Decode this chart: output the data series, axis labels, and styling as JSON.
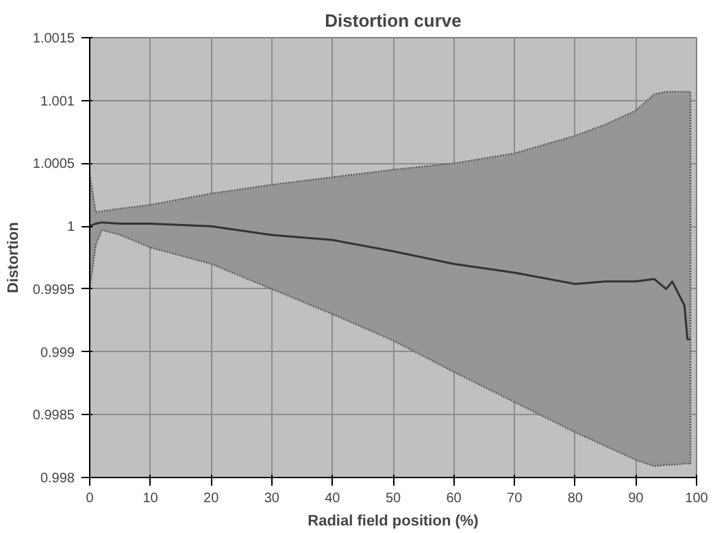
{
  "chart_data": {
    "type": "line",
    "title": "Distortion curve",
    "xlabel": "Radial field position (%)",
    "ylabel": "Distortion",
    "x": [
      0,
      1,
      2,
      5,
      10,
      20,
      30,
      40,
      50,
      60,
      70,
      80,
      85,
      90,
      93,
      95,
      96,
      98,
      98.5,
      99
    ],
    "series": [
      {
        "color": "#333333",
        "values": [
          1.0,
          1.00002,
          1.00003,
          1.00002,
          1.00002,
          1.0,
          0.99993,
          0.99989,
          0.9998,
          0.9997,
          0.99963,
          0.99954,
          0.99956,
          0.99956,
          0.99958,
          0.9995,
          0.99956,
          0.99937,
          0.9991,
          0.9991
        ],
        "upper": [
          1.00041,
          1.00011,
          1.00012,
          1.00014,
          1.00017,
          1.00026,
          1.00033,
          1.00039,
          1.00045,
          1.0005,
          1.00058,
          1.00072,
          1.00081,
          1.00092,
          1.00105,
          1.00107,
          1.00107,
          1.00107,
          1.00107,
          1.00107
        ],
        "lower": [
          0.9995,
          0.99985,
          0.99997,
          0.99993,
          0.99983,
          0.9997,
          0.9995,
          0.9993,
          0.99909,
          0.99884,
          0.9986,
          0.99836,
          0.99825,
          0.99814,
          0.99809,
          0.9981,
          0.9981,
          0.99811,
          0.99811,
          0.99811
        ]
      }
    ],
    "xlim": [
      0,
      100
    ],
    "xticks": [
      0,
      10,
      20,
      30,
      40,
      50,
      60,
      70,
      80,
      90,
      100
    ],
    "ylim": [
      0.998,
      1.0015
    ],
    "yticks": [
      0.998,
      0.9985,
      0.999,
      0.9995,
      1,
      1.0005,
      1.001,
      1.0015
    ],
    "grid": true,
    "line_style": "solid",
    "marker": "none"
  }
}
